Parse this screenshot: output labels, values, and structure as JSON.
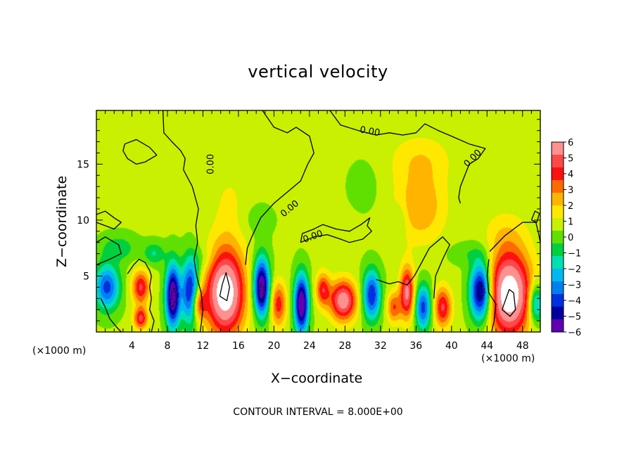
{
  "chart_data": {
    "type": "heatmap",
    "title": "vertical velocity",
    "xlabel": "X−coordinate",
    "ylabel": "Z−coordinate",
    "x_unit_left": "(×1000 m)",
    "x_unit_right": "(×1000 m)",
    "caption": "CONTOUR INTERVAL = 8.000E+00",
    "xlim": [
      0,
      50
    ],
    "ylim": [
      0,
      19.8
    ],
    "x_ticks": [
      4,
      8,
      12,
      16,
      20,
      24,
      28,
      32,
      36,
      40,
      44,
      48
    ],
    "y_ticks": [
      5,
      10,
      15
    ],
    "colorbar": {
      "range": [
        -6,
        6
      ],
      "ticks": [
        "6",
        "5",
        "4",
        "3",
        "2",
        "1",
        "0",
        "−1",
        "−2",
        "−3",
        "−4",
        "−5",
        "−6"
      ],
      "colors": [
        "#ff9090",
        "#ff4848",
        "#ff1010",
        "#ff6a00",
        "#ffb400",
        "#ffe800",
        "#c8f000",
        "#60e000",
        "#00d040",
        "#00e0b0",
        "#00b8f0",
        "#0080f0",
        "#0030e0",
        "#0000a0",
        "#6000b0"
      ]
    },
    "contour_labels": [
      {
        "text": "0.00",
        "x": 12.9,
        "y": 15.0,
        "angle": -90
      },
      {
        "text": "0.00",
        "x": 21.8,
        "y": 11.0,
        "angle": -40
      },
      {
        "text": "0.00",
        "x": 24.4,
        "y": 8.5,
        "angle": -20
      },
      {
        "text": "0.00",
        "x": 30.8,
        "y": 17.9,
        "angle": 10
      },
      {
        "text": "0.00",
        "x": 42.4,
        "y": 15.5,
        "angle": -45
      }
    ],
    "features": [
      {
        "x": 14.5,
        "y": 3.5,
        "rx": 2.2,
        "ry": 3.8,
        "v": 7
      },
      {
        "x": 46.5,
        "y": 3.4,
        "rx": 2.5,
        "ry": 3.9,
        "v": 7
      },
      {
        "x": 8.6,
        "y": 3.2,
        "rx": 0.8,
        "ry": 2.8,
        "v": -7
      },
      {
        "x": 10.6,
        "y": 3.6,
        "rx": 1.0,
        "ry": 2.9,
        "v": -5.5
      },
      {
        "x": 18.6,
        "y": 4.0,
        "rx": 0.9,
        "ry": 2.6,
        "v": -7
      },
      {
        "x": 23.1,
        "y": 2.5,
        "rx": 0.8,
        "ry": 2.6,
        "v": -7
      },
      {
        "x": 43.3,
        "y": 3.6,
        "rx": 1.2,
        "ry": 2.6,
        "v": -7
      },
      {
        "x": 31.0,
        "y": 3.3,
        "rx": 1.0,
        "ry": 2.2,
        "v": -5
      },
      {
        "x": 36.8,
        "y": 2.2,
        "rx": 0.9,
        "ry": 2.0,
        "v": -4.5
      },
      {
        "x": 1.2,
        "y": 4.0,
        "rx": 1.4,
        "ry": 2.0,
        "v": -4.5
      },
      {
        "x": 27.8,
        "y": 2.8,
        "rx": 1.5,
        "ry": 1.8,
        "v": 5.5
      },
      {
        "x": 35.0,
        "y": 3.5,
        "rx": 0.8,
        "ry": 2.3,
        "v": 5
      },
      {
        "x": 39.0,
        "y": 2.2,
        "rx": 1.0,
        "ry": 1.8,
        "v": 4
      },
      {
        "x": 5.0,
        "y": 4.0,
        "rx": 1.0,
        "ry": 1.5,
        "v": 4
      },
      {
        "x": 5.0,
        "y": 1.2,
        "rx": 0.8,
        "ry": 1.0,
        "v": 4
      },
      {
        "x": 25.5,
        "y": 3.8,
        "rx": 0.8,
        "ry": 1.5,
        "v": 3.5
      },
      {
        "x": 20.5,
        "y": 2.5,
        "rx": 0.9,
        "ry": 2.0,
        "v": 3.5
      },
      {
        "x": 11.5,
        "y": 2.5,
        "rx": 0.8,
        "ry": 1.5,
        "v": 3.5
      },
      {
        "x": 33.5,
        "y": 2.2,
        "rx": 0.8,
        "ry": 1.4,
        "v": 3
      },
      {
        "x": 49.5,
        "y": 2.5,
        "rx": 0.8,
        "ry": 1.8,
        "v": -4
      },
      {
        "x": 2.5,
        "y": 7.5,
        "rx": 2.0,
        "ry": 1.2,
        "v": -1.5
      },
      {
        "x": 6.5,
        "y": 7.0,
        "rx": 1.2,
        "ry": 1.0,
        "v": -1.8
      },
      {
        "x": 36.5,
        "y": 11.2,
        "rx": 2.8,
        "ry": 3.2,
        "v": 2.2
      },
      {
        "x": 36.5,
        "y": 15.5,
        "rx": 3.5,
        "ry": 2.2,
        "v": 1.2
      },
      {
        "x": 30.0,
        "y": 13.0,
        "rx": 1.5,
        "ry": 2.0,
        "v": -0.8
      },
      {
        "x": 34.2,
        "y": 10.0,
        "rx": 0.8,
        "ry": 1.5,
        "v": -1.0
      },
      {
        "x": 18.0,
        "y": 10.0,
        "rx": 2.0,
        "ry": 1.5,
        "v": -0.6
      },
      {
        "x": 42.0,
        "y": 7.0,
        "rx": 2.5,
        "ry": 1.0,
        "v": -0.8
      },
      {
        "x": 12.0,
        "y": 6.5,
        "rx": 1.5,
        "ry": 1.2,
        "v": -0.8
      },
      {
        "x": 15.0,
        "y": 11.0,
        "rx": 2.0,
        "ry": 4.0,
        "v": 0.8
      },
      {
        "x": 46.0,
        "y": 9.0,
        "rx": 2.5,
        "ry": 2.0,
        "v": 0.8
      },
      {
        "x": 26.0,
        "y": 9.5,
        "rx": 2.5,
        "ry": 1.5,
        "v": 0.6
      }
    ],
    "contours": [
      [
        [
          7.5,
          19.8
        ],
        [
          7.6,
          17.8
        ],
        [
          8.5,
          17.0
        ],
        [
          9.5,
          16.2
        ],
        [
          10.0,
          15.5
        ],
        [
          9.8,
          14.5
        ],
        [
          10.8,
          13.0
        ],
        [
          11.5,
          11.0
        ],
        [
          11.2,
          9.5
        ],
        [
          11.4,
          8.0
        ],
        [
          11.0,
          6.5
        ],
        [
          11.3,
          5.0
        ],
        [
          11.8,
          3.5
        ],
        [
          12.0,
          2.0
        ],
        [
          11.7,
          0
        ]
      ],
      [
        [
          18.7,
          19.8
        ],
        [
          20.0,
          18.3
        ],
        [
          21.5,
          17.8
        ],
        [
          22.5,
          18.3
        ],
        [
          24.0,
          17.5
        ],
        [
          24.5,
          16.0
        ],
        [
          23.8,
          15.0
        ],
        [
          23.0,
          13.5
        ],
        [
          21.5,
          12.5
        ],
        [
          20.0,
          11.5
        ],
        [
          18.5,
          10.2
        ],
        [
          17.5,
          8.5
        ],
        [
          17.0,
          7.5
        ],
        [
          16.8,
          6.0
        ]
      ],
      [
        [
          26.3,
          19.8
        ],
        [
          27.5,
          18.5
        ],
        [
          29.5,
          18.0
        ],
        [
          31.5,
          17.6
        ],
        [
          33.0,
          17.8
        ],
        [
          34.5,
          17.6
        ],
        [
          36.0,
          17.8
        ],
        [
          37.0,
          18.6
        ],
        [
          38.5,
          18.0
        ],
        [
          40.0,
          17.5
        ],
        [
          42.0,
          16.8
        ],
        [
          43.8,
          16.4
        ],
        [
          43.0,
          15.5
        ],
        [
          42.0,
          15.0
        ],
        [
          41.5,
          14.0
        ],
        [
          41.0,
          13.0
        ],
        [
          40.8,
          12.0
        ],
        [
          41.0,
          11.5
        ]
      ],
      [
        [
          3.2,
          16.8
        ],
        [
          4.5,
          17.2
        ],
        [
          6.0,
          16.5
        ],
        [
          6.8,
          15.8
        ],
        [
          5.5,
          15.2
        ],
        [
          4.5,
          15.0
        ],
        [
          3.5,
          15.5
        ],
        [
          3.0,
          16.2
        ],
        [
          3.2,
          16.8
        ]
      ],
      [
        [
          23.0,
          8.0
        ],
        [
          24.5,
          8.5
        ],
        [
          26.0,
          8.7
        ],
        [
          27.5,
          8.3
        ],
        [
          28.5,
          8.0
        ],
        [
          30.0,
          8.3
        ],
        [
          31.0,
          9.0
        ],
        [
          30.5,
          9.5
        ],
        [
          30.8,
          10.2
        ],
        [
          29.8,
          9.6
        ],
        [
          28.5,
          9.0
        ],
        [
          27.0,
          9.2
        ],
        [
          25.5,
          9.6
        ],
        [
          24.5,
          9.2
        ],
        [
          23.2,
          8.8
        ],
        [
          23.0,
          8.0
        ]
      ],
      [
        [
          3.5,
          5.2
        ],
        [
          4.2,
          6.0
        ],
        [
          4.8,
          6.5
        ],
        [
          5.5,
          6.2
        ],
        [
          6.0,
          5.5
        ],
        [
          6.2,
          5.0
        ],
        [
          6.0,
          4.0
        ],
        [
          6.2,
          3.0
        ],
        [
          6.0,
          2.0
        ],
        [
          6.5,
          1.0
        ],
        [
          6.2,
          0
        ]
      ],
      [
        [
          0,
          6.0
        ],
        [
          1.5,
          6.5
        ],
        [
          2.8,
          7.0
        ],
        [
          2.5,
          7.8
        ],
        [
          1.0,
          8.5
        ],
        [
          0,
          8.0
        ]
      ],
      [
        [
          0,
          10.5
        ],
        [
          1.0,
          10.8
        ],
        [
          2.0,
          10.2
        ],
        [
          2.8,
          9.8
        ],
        [
          2.0,
          9.2
        ],
        [
          1.0,
          9.5
        ],
        [
          0,
          9.8
        ]
      ],
      [
        [
          31.5,
          4.7
        ],
        [
          33.0,
          4.3
        ],
        [
          34.0,
          4.5
        ],
        [
          35.0,
          4.2
        ],
        [
          35.8,
          5.0
        ],
        [
          36.5,
          6.0
        ],
        [
          37.5,
          7.5
        ],
        [
          39.0,
          8.5
        ],
        [
          39.8,
          7.8
        ],
        [
          39.0,
          6.5
        ],
        [
          38.2,
          5.0
        ],
        [
          38.0,
          3.0
        ]
      ],
      [
        [
          0.5,
          3.0
        ],
        [
          1.0,
          2.2
        ],
        [
          1.5,
          1.2
        ],
        [
          2.2,
          0.5
        ],
        [
          2.8,
          0
        ]
      ],
      [
        [
          44.2,
          6.5
        ],
        [
          44.0,
          5.0
        ],
        [
          44.2,
          3.5
        ],
        [
          45.0,
          2.5
        ],
        [
          44.8,
          1.0
        ],
        [
          44.5,
          0
        ]
      ],
      [
        [
          44.3,
          7.2
        ],
        [
          46.0,
          8.6
        ],
        [
          48.0,
          9.8
        ],
        [
          49.5,
          9.8
        ],
        [
          49.8,
          8.8
        ],
        [
          50,
          8.0
        ]
      ],
      [
        [
          49.0,
          10.0
        ],
        [
          49.4,
          10.8
        ],
        [
          49.9,
          10.6
        ],
        [
          49.6,
          9.8
        ],
        [
          49.0,
          10.0
        ]
      ],
      [
        [
          13.9,
          3.2
        ],
        [
          14.2,
          4.3
        ],
        [
          14.6,
          5.3
        ],
        [
          15.0,
          4.0
        ],
        [
          14.7,
          2.8
        ],
        [
          13.9,
          3.2
        ]
      ],
      [
        [
          45.7,
          2.0
        ],
        [
          46.5,
          3.8
        ],
        [
          47.0,
          3.5
        ],
        [
          47.2,
          2.0
        ],
        [
          46.6,
          1.4
        ],
        [
          45.7,
          2.0
        ]
      ]
    ],
    "dashed_contours": [
      [
        [
          8.3,
          2.5
        ],
        [
          8.5,
          3.5
        ],
        [
          8.8,
          4.0
        ],
        [
          9.0,
          3.0
        ],
        [
          8.6,
          2.2
        ],
        [
          8.3,
          2.5
        ]
      ],
      [
        [
          18.3,
          3.0
        ],
        [
          18.5,
          4.3
        ],
        [
          18.9,
          4.0
        ],
        [
          18.7,
          2.8
        ],
        [
          18.3,
          3.0
        ]
      ],
      [
        [
          43.0,
          3.4
        ],
        [
          43.4,
          4.4
        ],
        [
          43.8,
          3.6
        ],
        [
          43.4,
          3.0
        ],
        [
          43.0,
          3.4
        ]
      ]
    ]
  }
}
